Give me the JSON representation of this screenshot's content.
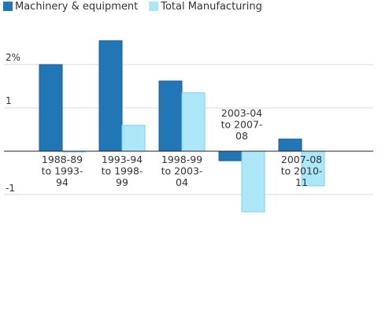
{
  "chart_data": {
    "type": "bar",
    "categories": [
      [
        "1988-89",
        "to 1993-",
        "94"
      ],
      [
        "1993-94",
        "to 1998-",
        "99"
      ],
      [
        "1998-99",
        "to 2003-",
        "04"
      ],
      [
        "2003-04",
        "to 2007-",
        "08"
      ],
      [
        "2007-08",
        "to 2010-",
        "11"
      ]
    ],
    "series": [
      {
        "name": "Machinery & equipment",
        "color": "#2176b5",
        "values": [
          2.0,
          2.55,
          1.62,
          -0.22,
          0.28
        ]
      },
      {
        "name": "Total Manufacturing",
        "color": "#abe7f7",
        "values": [
          0.0,
          0.6,
          1.35,
          -1.4,
          -0.8
        ]
      }
    ],
    "y_ticks": [
      {
        "value": 2,
        "label": "2%"
      },
      {
        "value": 1,
        "label": "1"
      },
      {
        "value": -1,
        "label": "-1"
      }
    ],
    "ylim": [
      -3.5,
      2.8
    ],
    "grid": true,
    "legend": "top-left",
    "title": "",
    "xlabel": "",
    "ylabel": ""
  }
}
